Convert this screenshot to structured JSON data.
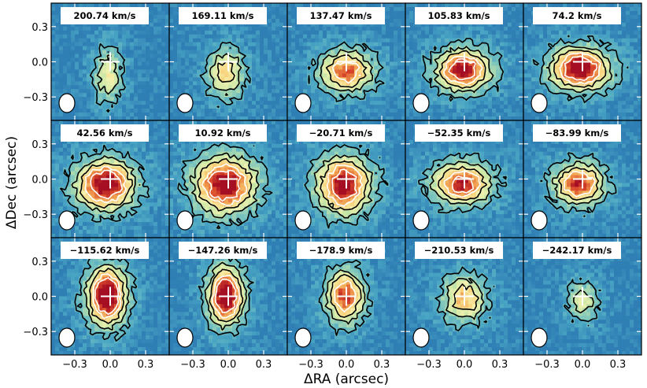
{
  "chart_data": {
    "type": "heatmap",
    "xlabel": "ΔRA (arcsec)",
    "ylabel": "ΔDec (arcsec)",
    "xlim": [
      -0.5,
      0.5
    ],
    "ylim": [
      -0.5,
      0.5
    ],
    "x_ticks": [
      "−0.3",
      "0.0",
      "0.3"
    ],
    "y_ticks": [
      "0.3",
      "0.0",
      "−0.3"
    ],
    "x_tick_values": [
      -0.3,
      0.0,
      0.3
    ],
    "y_tick_values": [
      0.3,
      0.0,
      -0.3
    ],
    "grid": false,
    "colormap": [
      "#2f7fb5",
      "#4aa6c4",
      "#7cc5be",
      "#c9e6a6",
      "#f4f2b0",
      "#f8d27c",
      "#f09a4d",
      "#d9472b",
      "#a50f24"
    ],
    "contour_color": "#000000",
    "center_marker_color": "#ffffff",
    "panels": [
      {
        "velocity_label": "200.74 km/s",
        "peak": 0.4,
        "cx": -0.02,
        "cy": -0.12,
        "sx": 0.08,
        "sy": 0.16
      },
      {
        "velocity_label": "169.11 km/s",
        "peak": 0.5,
        "cx": -0.02,
        "cy": -0.1,
        "sx": 0.1,
        "sy": 0.14
      },
      {
        "velocity_label": "137.47 km/s",
        "peak": 0.7,
        "cx": 0.0,
        "cy": -0.08,
        "sx": 0.14,
        "sy": 0.11
      },
      {
        "velocity_label": "105.83 km/s",
        "peak": 0.88,
        "cx": -0.01,
        "cy": -0.07,
        "sx": 0.14,
        "sy": 0.11
      },
      {
        "velocity_label": "74.2 km/s",
        "peak": 0.95,
        "cx": -0.02,
        "cy": -0.06,
        "sx": 0.15,
        "sy": 0.11
      },
      {
        "velocity_label": "42.56 km/s",
        "peak": 0.92,
        "cx": -0.04,
        "cy": -0.05,
        "sx": 0.15,
        "sy": 0.13
      },
      {
        "velocity_label": "10.92 km/s",
        "peak": 0.9,
        "cx": -0.03,
        "cy": -0.05,
        "sx": 0.16,
        "sy": 0.15
      },
      {
        "velocity_label": "−20.71 km/s",
        "peak": 0.88,
        "cx": -0.02,
        "cy": -0.05,
        "sx": 0.14,
        "sy": 0.15
      },
      {
        "velocity_label": "−52.35 km/s",
        "peak": 0.8,
        "cx": -0.02,
        "cy": -0.04,
        "sx": 0.15,
        "sy": 0.11
      },
      {
        "velocity_label": "−83.99 km/s",
        "peak": 0.78,
        "cx": -0.03,
        "cy": -0.04,
        "sx": 0.13,
        "sy": 0.11
      },
      {
        "velocity_label": "−115.62 km/s",
        "peak": 1.0,
        "cx": -0.03,
        "cy": 0.0,
        "sx": 0.1,
        "sy": 0.15
      },
      {
        "velocity_label": "−147.26 km/s",
        "peak": 0.97,
        "cx": -0.02,
        "cy": 0.0,
        "sx": 0.09,
        "sy": 0.15
      },
      {
        "velocity_label": "−178.9 km/s",
        "peak": 0.75,
        "cx": -0.01,
        "cy": 0.0,
        "sx": 0.1,
        "sy": 0.14
      },
      {
        "velocity_label": "−210.53 km/s",
        "peak": 0.55,
        "cx": 0.0,
        "cy": -0.02,
        "sx": 0.12,
        "sy": 0.13
      },
      {
        "velocity_label": "−242.17 km/s",
        "peak": 0.35,
        "cx": 0.0,
        "cy": -0.04,
        "sx": 0.09,
        "sy": 0.12
      }
    ],
    "contour_levels": [
      0.18,
      0.34,
      0.5,
      0.66,
      0.82
    ],
    "negative_contour_level": -0.12
  }
}
